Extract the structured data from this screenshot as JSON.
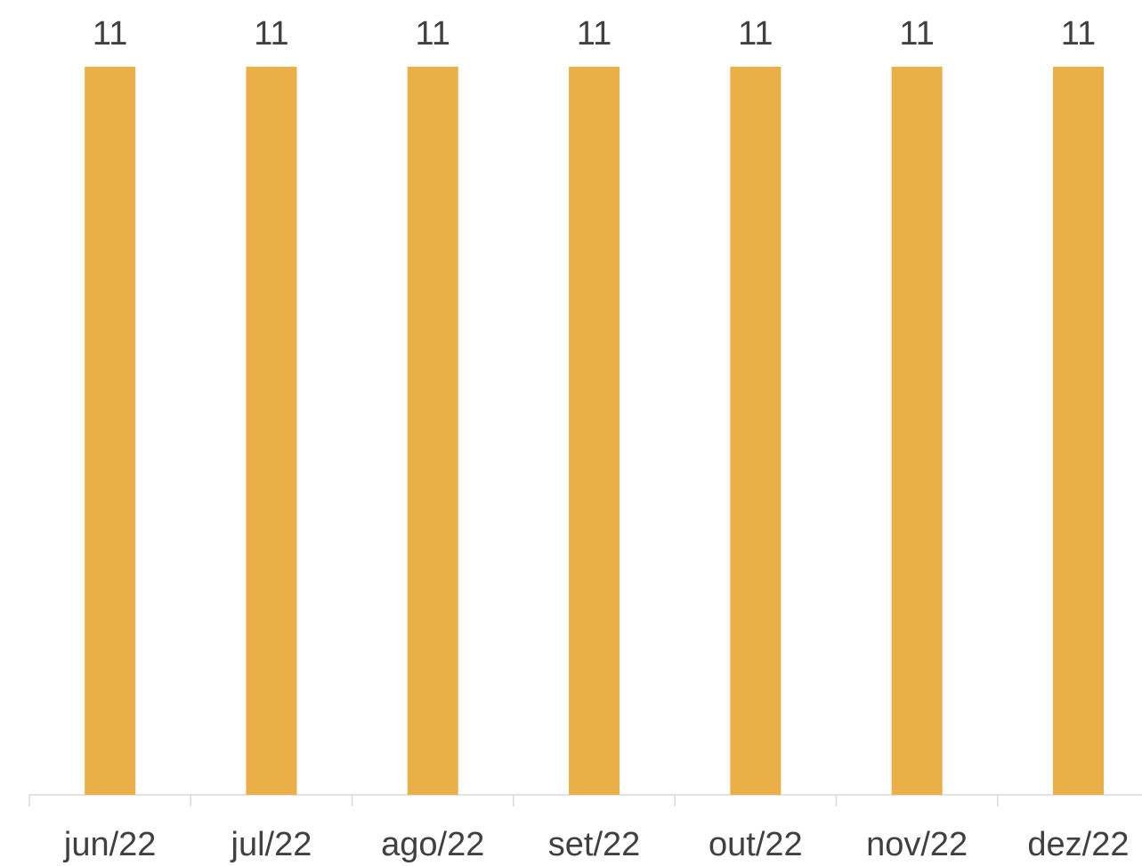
{
  "chart_data": {
    "type": "bar",
    "categories": [
      "jun/22",
      "jul/22",
      "ago/22",
      "set/22",
      "out/22",
      "nov/22",
      "dez/22"
    ],
    "values": [
      11,
      11,
      11,
      11,
      11,
      11,
      11
    ],
    "color": "#eaaf47"
  }
}
